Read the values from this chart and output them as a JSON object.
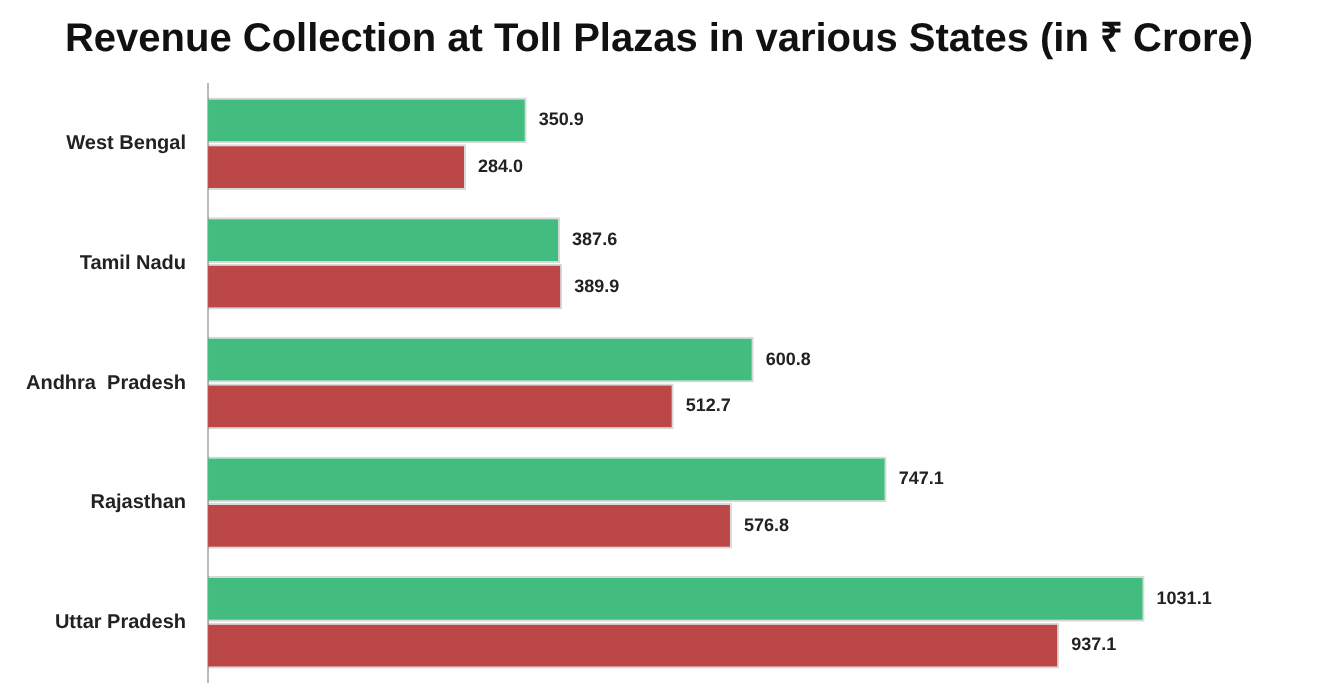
{
  "chart_data": {
    "type": "bar",
    "orientation": "horizontal",
    "title": "Revenue Collection at Toll Plazas in various States (in ₹ Crore)",
    "categories": [
      "West Bengal",
      "Tamil Nadu",
      "Andhra  Pradesh",
      "Rajasthan",
      "Uttar Pradesh"
    ],
    "series": [
      {
        "color": "#42bd7f",
        "values": [
          350.9,
          387.6,
          600.8,
          747.1,
          1031.1
        ],
        "value_labels": [
          "350.9",
          "387.6",
          "600.8",
          "747.1",
          "1031.1"
        ]
      },
      {
        "color": "#bb4746",
        "values": [
          284.0,
          389.9,
          512.7,
          576.8,
          937.1
        ],
        "value_labels": [
          "284.0",
          "389.9",
          "512.7",
          "576.8",
          "937.1"
        ]
      }
    ],
    "tick_labels": "y",
    "grid": false,
    "legend": false
  }
}
